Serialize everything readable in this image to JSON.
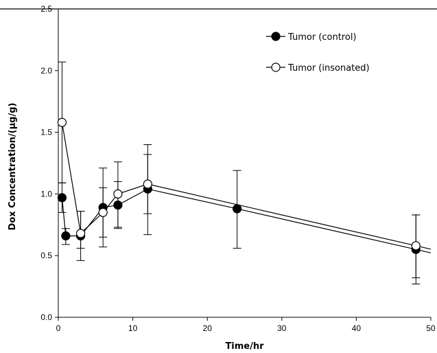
{
  "chart_data": {
    "type": "line",
    "xlabel": "Time/hr",
    "ylabel": "Dox Concentration/(µg/g)",
    "xlim": [
      0,
      50
    ],
    "ylim": [
      0,
      2.5
    ],
    "xticks": [
      0,
      10,
      20,
      30,
      40,
      50
    ],
    "yticks": [
      0.0,
      0.5,
      1.0,
      1.5,
      2.0,
      2.5
    ],
    "xtick_labels": [
      "0",
      "10",
      "20",
      "30",
      "40",
      "50"
    ],
    "ytick_labels": [
      "0.0",
      "0.5",
      "1.0",
      "1.5",
      "2.0",
      "2.5"
    ],
    "grid": false,
    "legend_position": "top-right",
    "series": [
      {
        "name": "Tumor (control)",
        "marker": "filled-circle",
        "color": "#000000",
        "x": [
          0.5,
          1,
          3,
          6,
          8,
          12,
          24,
          48
        ],
        "y": [
          0.97,
          0.66,
          0.66,
          0.89,
          0.91,
          1.04,
          0.88,
          0.55
        ],
        "err_low": [
          0.12,
          0.07,
          0.2,
          0.32,
          0.19,
          0.37,
          0.32,
          0.28
        ],
        "err_high": [
          0.12,
          0.06,
          0.2,
          0.32,
          0.19,
          0.28,
          0.31,
          0.28
        ],
        "extend_to_x": 50
      },
      {
        "name": "Tumor (insonated)",
        "marker": "open-circle",
        "color": "#000000",
        "x": [
          0.5,
          3,
          6,
          8,
          12,
          48
        ],
        "y": [
          1.58,
          0.68,
          0.85,
          1.0,
          1.08,
          0.58
        ],
        "err_low": [
          0.49,
          0.12,
          0.2,
          0.27,
          0.24,
          0.26
        ],
        "err_high": [
          0.49,
          0.18,
          0.2,
          0.26,
          0.32,
          0.25
        ],
        "extend_to_x": 50
      }
    ]
  }
}
